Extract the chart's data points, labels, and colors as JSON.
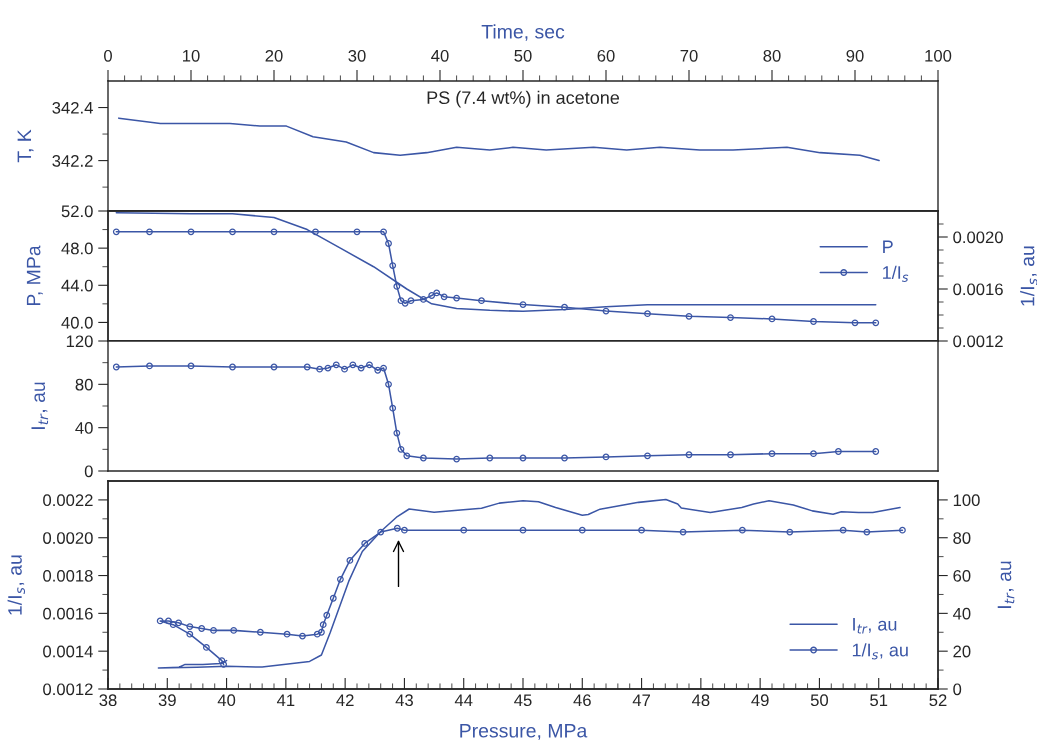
{
  "chart_data": [
    {
      "type": "line",
      "xlabel": "Time, sec",
      "ylabel": "T, K",
      "annotations": [
        "PS (7.4 wt%) in acetone"
      ],
      "xlim": [
        0,
        100
      ],
      "xticks": [
        0,
        {
          "value": 2,
          "label": null
        },
        {
          "value": 4,
          "label": null
        },
        {
          "value": 6,
          "label": null
        },
        {
          "value": 8,
          "label": null
        },
        10,
        {
          "value": 12,
          "label": null
        },
        {
          "value": 14,
          "label": null
        },
        {
          "value": 16,
          "label": null
        },
        {
          "value": 18,
          "label": null
        },
        20,
        {
          "value": 22,
          "label": null
        },
        {
          "value": 24,
          "label": null
        },
        {
          "value": 26,
          "label": null
        },
        {
          "value": 28,
          "label": null
        },
        30,
        {
          "value": 32,
          "label": null
        },
        {
          "value": 34,
          "label": null
        },
        {
          "value": 36,
          "label": null
        },
        {
          "value": 38,
          "label": null
        },
        40,
        {
          "value": 42,
          "label": null
        },
        {
          "value": 44,
          "label": null
        },
        {
          "value": 46,
          "label": null
        },
        {
          "value": 48,
          "label": null
        },
        50,
        {
          "value": 52,
          "label": null
        },
        {
          "value": 54,
          "label": null
        },
        {
          "value": 56,
          "label": null
        },
        {
          "value": 58,
          "label": null
        },
        60,
        {
          "value": 62,
          "label": null
        },
        {
          "value": 64,
          "label": null
        },
        {
          "value": 66,
          "label": null
        },
        {
          "value": 68,
          "label": null
        },
        70,
        {
          "value": 72,
          "label": null
        },
        {
          "value": 74,
          "label": null
        },
        {
          "value": 76,
          "label": null
        },
        {
          "value": 78,
          "label": null
        },
        80,
        {
          "value": 82,
          "label": null
        },
        {
          "value": 84,
          "label": null
        },
        {
          "value": 86,
          "label": null
        },
        {
          "value": 88,
          "label": null
        },
        90,
        {
          "value": 92,
          "label": null
        },
        {
          "value": 94,
          "label": null
        },
        {
          "value": 96,
          "label": null
        },
        {
          "value": 98,
          "label": null
        },
        100
      ],
      "ylim": [
        342.01,
        342.5
      ],
      "yticks": [
        {
          "value": 342.1,
          "label": null
        },
        342.2,
        {
          "value": 342.3,
          "label": null
        },
        342.4
      ],
      "series": [
        {
          "color": "#3b56a6",
          "marker": "none",
          "x": [
            1.3,
            6.3,
            10.3,
            14.7,
            18.3,
            21.5,
            24.7,
            28.7,
            32,
            35.2,
            38.4,
            42,
            46,
            48.8,
            52.8,
            58.5,
            62.5,
            66.5,
            71.3,
            75.3,
            81.8,
            85.8,
            90.6,
            92.9
          ],
          "values": [
            342.36,
            342.34,
            342.34,
            342.34,
            342.33,
            342.33,
            342.29,
            342.27,
            342.23,
            342.22,
            342.23,
            342.25,
            342.24,
            342.25,
            342.24,
            342.25,
            342.24,
            342.25,
            342.24,
            342.24,
            342.25,
            342.23,
            342.22,
            342.2
          ]
        }
      ]
    },
    {
      "type": "line",
      "ylabel": "P, MPa",
      "y2label": "1/I$_{s}$, au",
      "tick_labels": "y",
      "legend": "top right",
      "xlim": [
        0,
        100
      ],
      "ylim": [
        38,
        52
      ],
      "yticks": [
        {
          "value": 40,
          "label": "40.0"
        },
        {
          "value": 42,
          "label": null
        },
        {
          "value": 44,
          "label": "44.0"
        },
        {
          "value": 46,
          "label": null
        },
        {
          "value": 48,
          "label": "48.0"
        },
        {
          "value": 50,
          "label": null
        },
        {
          "value": 52,
          "label": "52.0"
        }
      ],
      "y2lim": [
        0.0012,
        0.0022
      ],
      "y2ticks": [
        0.0012,
        {
          "value": 0.0013,
          "label": null
        },
        {
          "value": 0.0014,
          "label": null
        },
        {
          "value": 0.0015,
          "label": null
        },
        0.0016,
        {
          "value": 0.0017,
          "label": null
        },
        {
          "value": 0.0018,
          "label": null
        },
        {
          "value": 0.0019,
          "label": null
        },
        {
          "value": 0.002,
          "label": "0.0020"
        },
        {
          "value": 0.0021,
          "label": null
        }
      ],
      "series": [
        {
          "name": "P",
          "color": "#3b56a6",
          "marker": "none",
          "x": [
            1,
            10,
            15,
            20,
            24,
            28,
            32,
            36,
            39,
            42,
            46,
            50,
            55,
            60,
            65,
            92.5
          ],
          "values": [
            51.8,
            51.7,
            51.7,
            51.3,
            50.0,
            48.0,
            46.0,
            43.6,
            42.0,
            41.5,
            41.3,
            41.2,
            41.4,
            41.7,
            41.9,
            41.9
          ]
        },
        {
          "name": "1/I$_{s}$",
          "color": "#3b56a6",
          "marker": "circle",
          "axis": "y2",
          "x": [
            1,
            5,
            10,
            15,
            20,
            25,
            30,
            33.2,
            33.8,
            34.3,
            34.8,
            35.3,
            35.8,
            36.5,
            38,
            39,
            39.6,
            40.5,
            42,
            45,
            50,
            55,
            60,
            65,
            70,
            75,
            80,
            85,
            90,
            92.5
          ],
          "values": [
            0.00204,
            0.00204,
            0.00204,
            0.00204,
            0.00204,
            0.00204,
            0.00204,
            0.00204,
            0.00195,
            0.00178,
            0.00162,
            0.00151,
            0.00149,
            0.00151,
            0.00152,
            0.00155,
            0.00157,
            0.00154,
            0.00153,
            0.00151,
            0.00148,
            0.00146,
            0.00143,
            0.00141,
            0.00139,
            0.00138,
            0.00137,
            0.00135,
            0.00134,
            0.00134
          ]
        }
      ]
    },
    {
      "type": "line",
      "ylabel": "I$_{tr}$, au",
      "tick_labels": "y",
      "xlim": [
        0,
        100
      ],
      "ylim": [
        0,
        120
      ],
      "yticks": [
        0,
        {
          "value": 20,
          "label": null
        },
        40,
        {
          "value": 60,
          "label": null
        },
        80,
        {
          "value": 100,
          "label": null
        },
        120
      ],
      "series": [
        {
          "color": "#3b56a6",
          "marker": "circle",
          "x": [
            1,
            5,
            10,
            15,
            20,
            24,
            25.5,
            26.5,
            27.5,
            28.5,
            29.5,
            30.5,
            31.5,
            32.5,
            33.2,
            33.8,
            34.3,
            34.8,
            35.3,
            36,
            38,
            42,
            46,
            50,
            55,
            60,
            65,
            70,
            75,
            80,
            85,
            88,
            92.5
          ],
          "values": [
            96,
            97,
            97,
            96,
            96,
            96,
            94,
            95,
            98,
            94,
            98,
            95,
            98,
            93,
            95,
            80,
            58,
            35,
            20,
            14,
            12,
            11,
            12,
            12,
            12,
            13,
            14,
            15,
            15,
            16,
            16,
            18,
            18
          ]
        }
      ]
    },
    {
      "type": "line",
      "xlabel": "Pressure, MPa",
      "ylabel": "1/I$_{s}$, au",
      "y2label": "I$_{tr}$, au",
      "legend": "bottom right",
      "xlim": [
        38,
        52
      ],
      "xticks": [
        38,
        {
          "value": 38.2,
          "label": null
        },
        {
          "value": 38.4,
          "label": null
        },
        {
          "value": 38.6,
          "label": null
        },
        {
          "value": 38.8,
          "label": null
        },
        39,
        {
          "value": 39.2,
          "label": null
        },
        {
          "value": 39.4,
          "label": null
        },
        {
          "value": 39.6,
          "label": null
        },
        {
          "value": 39.8,
          "label": null
        },
        40,
        {
          "value": 40.2,
          "label": null
        },
        {
          "value": 40.4,
          "label": null
        },
        {
          "value": 40.6,
          "label": null
        },
        {
          "value": 40.8,
          "label": null
        },
        41,
        {
          "value": 41.2,
          "label": null
        },
        {
          "value": 41.4,
          "label": null
        },
        {
          "value": 41.6,
          "label": null
        },
        {
          "value": 41.8,
          "label": null
        },
        42,
        {
          "value": 42.2,
          "label": null
        },
        {
          "value": 42.4,
          "label": null
        },
        {
          "value": 42.6,
          "label": null
        },
        {
          "value": 42.8,
          "label": null
        },
        43,
        {
          "value": 43.2,
          "label": null
        },
        {
          "value": 43.4,
          "label": null
        },
        {
          "value": 43.6,
          "label": null
        },
        {
          "value": 43.8,
          "label": null
        },
        44,
        {
          "value": 44.2,
          "label": null
        },
        {
          "value": 44.4,
          "label": null
        },
        {
          "value": 44.6,
          "label": null
        },
        {
          "value": 44.8,
          "label": null
        },
        45,
        {
          "value": 45.2,
          "label": null
        },
        {
          "value": 45.4,
          "label": null
        },
        {
          "value": 45.6,
          "label": null
        },
        {
          "value": 45.8,
          "label": null
        },
        46,
        {
          "value": 46.2,
          "label": null
        },
        {
          "value": 46.4,
          "label": null
        },
        {
          "value": 46.6,
          "label": null
        },
        {
          "value": 46.8,
          "label": null
        },
        47,
        {
          "value": 47.2,
          "label": null
        },
        {
          "value": 47.4,
          "label": null
        },
        {
          "value": 47.6,
          "label": null
        },
        {
          "value": 47.8,
          "label": null
        },
        48,
        {
          "value": 48.2,
          "label": null
        },
        {
          "value": 48.4,
          "label": null
        },
        {
          "value": 48.6,
          "label": null
        },
        {
          "value": 48.8,
          "label": null
        },
        49,
        {
          "value": 49.2,
          "label": null
        },
        {
          "value": 49.4,
          "label": null
        },
        {
          "value": 49.6,
          "label": null
        },
        {
          "value": 49.8,
          "label": null
        },
        50,
        {
          "value": 50.2,
          "label": null
        },
        {
          "value": 50.4,
          "label": null
        },
        {
          "value": 50.6,
          "label": null
        },
        {
          "value": 50.8,
          "label": null
        },
        51,
        {
          "value": 51.2,
          "label": null
        },
        {
          "value": 51.4,
          "label": null
        },
        {
          "value": 51.6,
          "label": null
        },
        {
          "value": 51.8,
          "label": null
        },
        52
      ],
      "ylim": [
        0.0012,
        0.0023
      ],
      "yticks": [
        0.0012,
        {
          "value": 0.0013,
          "label": null
        },
        0.0014,
        {
          "value": 0.0015,
          "label": null
        },
        0.0016,
        {
          "value": 0.0017,
          "label": null
        },
        0.0018,
        {
          "value": 0.0019,
          "label": null
        },
        {
          "value": 0.002,
          "label": "0.0020"
        },
        {
          "value": 0.0021,
          "label": null
        },
        0.0022
      ],
      "y2lim": [
        0,
        110
      ],
      "y2ticks": [
        0,
        {
          "value": 10,
          "label": null
        },
        20,
        {
          "value": 30,
          "label": null
        },
        40,
        {
          "value": 50,
          "label": null
        },
        60,
        {
          "value": 70,
          "label": null
        },
        80,
        {
          "value": 90,
          "label": null
        },
        100
      ],
      "series": [
        {
          "name": "I$_{tr}$, au",
          "color": "#3b56a6",
          "marker": "none",
          "axis": "y2",
          "x": [
            51.36,
            51.13,
            50.9,
            50.66,
            50.37,
            50.23,
            49.88,
            49.56,
            49.15,
            48.89,
            48.69,
            48.16,
            47.67,
            47.61,
            47.41,
            46.95,
            46.3,
            46.1,
            46.0,
            45.55,
            45.26,
            45.0,
            44.6,
            44.3,
            43.5,
            43.08,
            42.88,
            42.6,
            42.29,
            42.06,
            41.75,
            41.6,
            41.4,
            40.6,
            40.0,
            39.5,
            38.85,
            39.2,
            39.3,
            39.6,
            39.9,
            40.0
          ],
          "values": [
            96,
            94.6,
            93.3,
            93.3,
            93.7,
            92.4,
            94.2,
            97.3,
            99.6,
            97.8,
            96,
            93.3,
            95.7,
            97.8,
            100.2,
            98.7,
            95.1,
            92.3,
            91.9,
            96,
            99,
            99.6,
            98.3,
            95.6,
            93.5,
            95.2,
            91.2,
            83.3,
            72.7,
            56.9,
            30,
            18,
            14.6,
            11.6,
            12,
            11.5,
            11.1,
            11.5,
            13,
            13,
            13.5,
            15
          ]
        },
        {
          "name": "1/I$_{s}$, au",
          "color": "#3b56a6",
          "marker": "circle",
          "x": [
            51.4,
            50.8,
            50.4,
            49.5,
            48.7,
            47.7,
            47,
            46,
            45,
            44,
            43,
            42.88,
            42.6,
            42.33,
            42.08,
            41.92,
            41.8,
            41.69,
            41.63,
            41.6,
            41.53,
            41.28,
            41.02,
            40.57,
            40.12,
            39.78,
            39.58,
            39.38,
            39.19,
            39.02,
            38.88,
            39.1,
            39.38,
            39.66,
            39.92,
            39.95
          ],
          "values": [
            0.00204,
            0.00203,
            0.00204,
            0.00203,
            0.00204,
            0.00203,
            0.00204,
            0.00204,
            0.00204,
            0.00204,
            0.00204,
            0.00205,
            0.00203,
            0.00197,
            0.00188,
            0.00178,
            0.00168,
            0.00159,
            0.00154,
            0.0015,
            0.00149,
            0.00148,
            0.00149,
            0.0015,
            0.00151,
            0.00151,
            0.00152,
            0.00153,
            0.00155,
            0.00156,
            0.00156,
            0.00154,
            0.00149,
            0.00142,
            0.00135,
            0.00133
          ]
        }
      ]
    }
  ]
}
